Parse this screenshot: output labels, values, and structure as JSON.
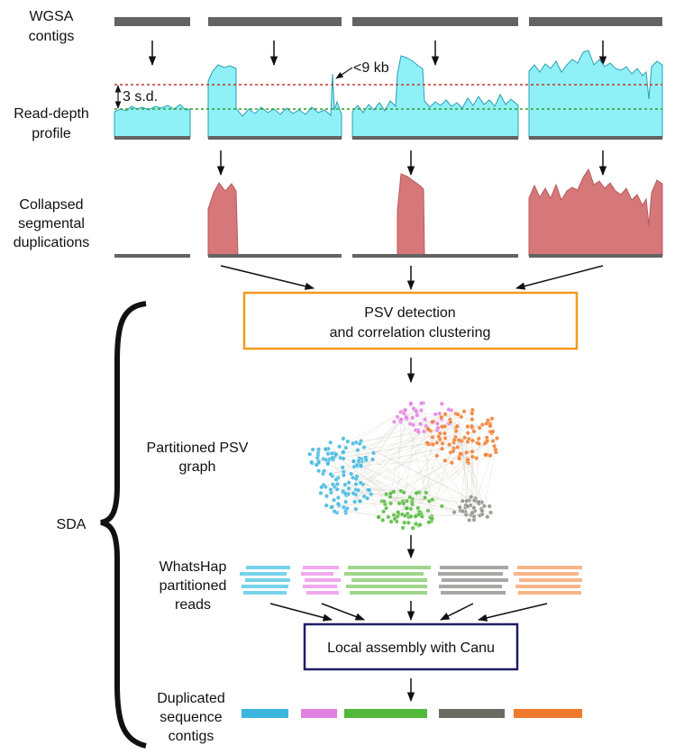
{
  "labels": {
    "wgsa_line1": "WGSA",
    "wgsa_line2": "contigs",
    "readdepth_line1": "Read-depth",
    "readdepth_line2": "profile",
    "sd_label": "3 s.d.",
    "kb_label": "<9 kb",
    "collapsed_line1": "Collapsed",
    "collapsed_line2": "segmental",
    "collapsed_line3": "duplications",
    "psv_box_line1": "PSV detection",
    "psv_box_line2": "and correlation clustering",
    "graph_line1": "Partitioned PSV",
    "graph_line2": "graph",
    "sda": "SDA",
    "whatshap_line1": "WhatsHap",
    "whatshap_line2": "partitioned",
    "whatshap_line3": "reads",
    "canu_box": "Local assembly with Canu",
    "dup_line1": "Duplicated",
    "dup_line2": "sequence",
    "dup_line3": "contigs"
  },
  "colors": {
    "contig_bar": "#636363",
    "depth_fill": "#8ff0f8",
    "depth_stroke": "#2a9fb5",
    "dup_fill": "#d6777a",
    "red_threshold": "#c0392b",
    "green_mean": "#2e9e2e",
    "psv_box_border": "#f29a1f",
    "canu_box_border": "#1d1d66",
    "cluster_blue": "#3cb6df",
    "cluster_pink": "#e27fe2",
    "cluster_green": "#52b83a",
    "cluster_gray": "#8d8d86",
    "cluster_orange": "#f07a2c",
    "read_blue": "#77d2ea",
    "read_pink": "#f0a8ee",
    "read_green": "#9ed58a",
    "read_gray": "#a7a7a5",
    "read_orange": "#f7b588"
  }
}
